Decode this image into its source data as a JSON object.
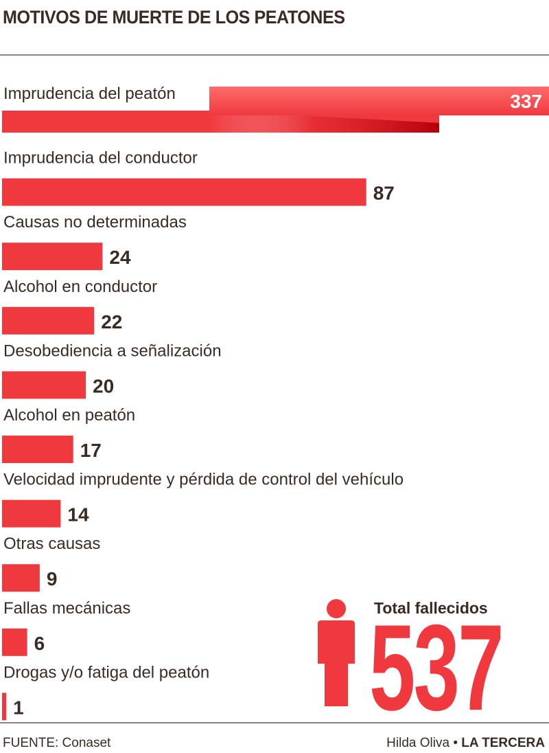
{
  "title": "MOTIVOS DE MUERTE DE LOS PEATONES",
  "chart_data": {
    "type": "bar",
    "orientation": "horizontal",
    "categories": [
      "Imprudencia del peatón",
      "Imprudencia del conductor",
      "Causas no determinadas",
      "Alcohol en conductor",
      "Desobediencia a señalización",
      "Alcohol en peatón",
      "Velocidad imprudente y pérdida de control del vehículo",
      "Otras causas",
      "Fallas mecánicas",
      "Drogas y/o fatiga del peatón"
    ],
    "values": [
      337,
      87,
      24,
      22,
      20,
      17,
      14,
      9,
      6,
      1
    ],
    "axis_break_on_first": true,
    "colors": {
      "bar": "#f0393f",
      "bar_dark": "#b5000c",
      "bar_light": "#ff6b6b"
    }
  },
  "total": {
    "label": "Total fallecidos",
    "value": "537",
    "icon": "person-icon"
  },
  "footer": {
    "source": "FUENTE: Conaset",
    "author": "Hilda Oliva",
    "separator": "•",
    "publication": "LA TERCERA"
  }
}
